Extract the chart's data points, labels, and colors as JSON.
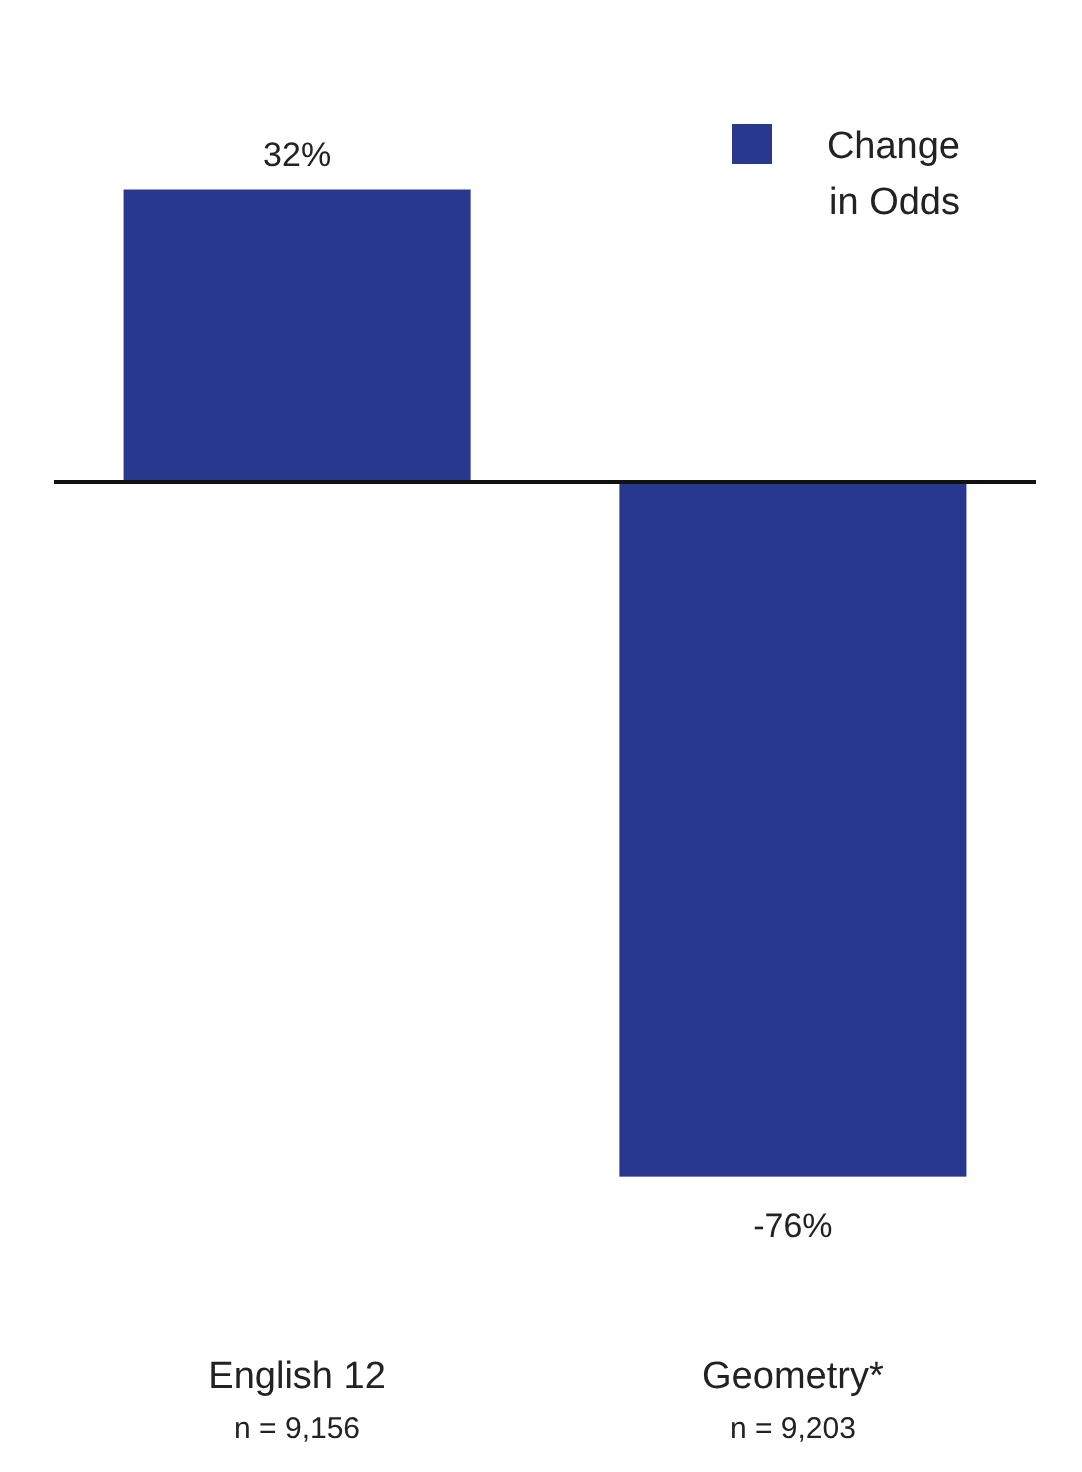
{
  "chart_data": {
    "type": "bar",
    "categories": [
      "English 12\nn = 9,156",
      "Geometry*\nn = 9,203"
    ],
    "series": [
      {
        "name": "Change\nin Odds",
        "color": "#29388f",
        "values": [
          32,
          -76
        ],
        "value_labels": [
          "32%",
          "-76%"
        ]
      }
    ],
    "legend": "top right"
  }
}
